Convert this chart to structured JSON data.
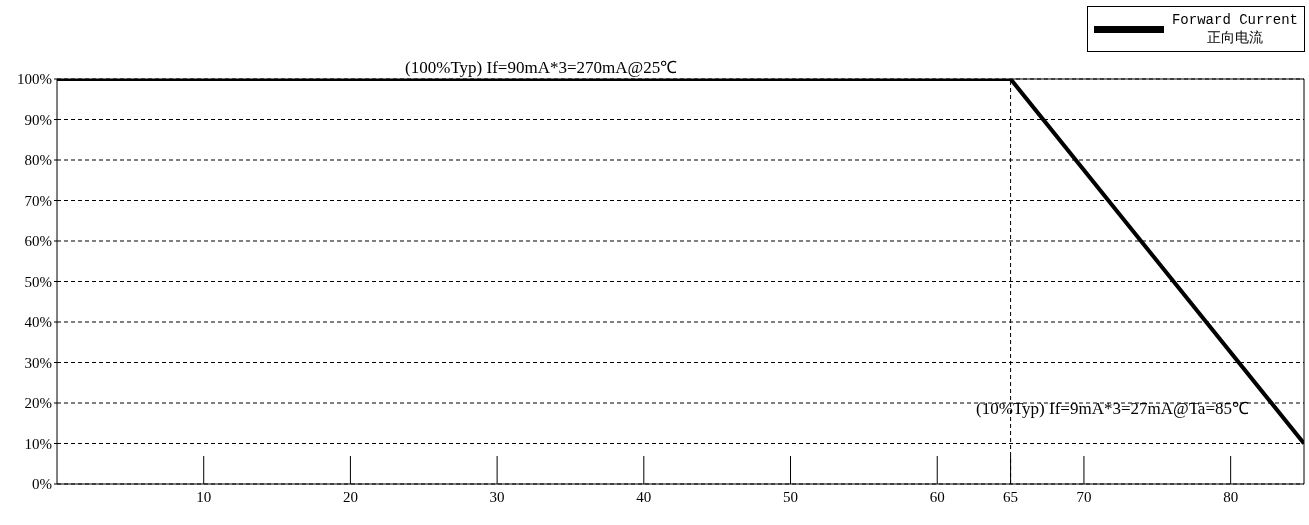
{
  "chart_data": {
    "type": "line",
    "x": [
      0,
      65,
      85
    ],
    "series": [
      {
        "name": "Forward Current\n正向电流",
        "color": "#000000",
        "values": [
          100,
          100,
          10
        ]
      }
    ],
    "xlim": [
      0,
      85
    ],
    "xticks": [
      10,
      20,
      30,
      40,
      50,
      60,
      65,
      70,
      80
    ],
    "ylim": [
      0,
      100
    ],
    "yticks": [
      {
        "value": 0,
        "label": "0%"
      },
      {
        "value": 10,
        "label": "10%"
      },
      {
        "value": 20,
        "label": "20%"
      },
      {
        "value": 30,
        "label": "30%"
      },
      {
        "value": 40,
        "label": "40%"
      },
      {
        "value": 50,
        "label": "50%"
      },
      {
        "value": 60,
        "label": "60%"
      },
      {
        "value": 70,
        "label": "70%"
      },
      {
        "value": 80,
        "label": "80%"
      },
      {
        "value": 90,
        "label": "90%"
      },
      {
        "value": 100,
        "label": "100%"
      }
    ],
    "grid": "y",
    "legend": "top right",
    "marker": "none",
    "line_style": "solid",
    "ref_lines": [
      {
        "axis": "x",
        "value": 65,
        "label": null,
        "color": "#000000",
        "line_style": "dashed"
      }
    ],
    "annotations": [
      {
        "text": "(100%Typ) If=90mA*3=270mA@25℃",
        "x": 33,
        "y": 100
      },
      "(10%Typ) If=9mA*3=27mA@Ta=85℃"
    ]
  }
}
